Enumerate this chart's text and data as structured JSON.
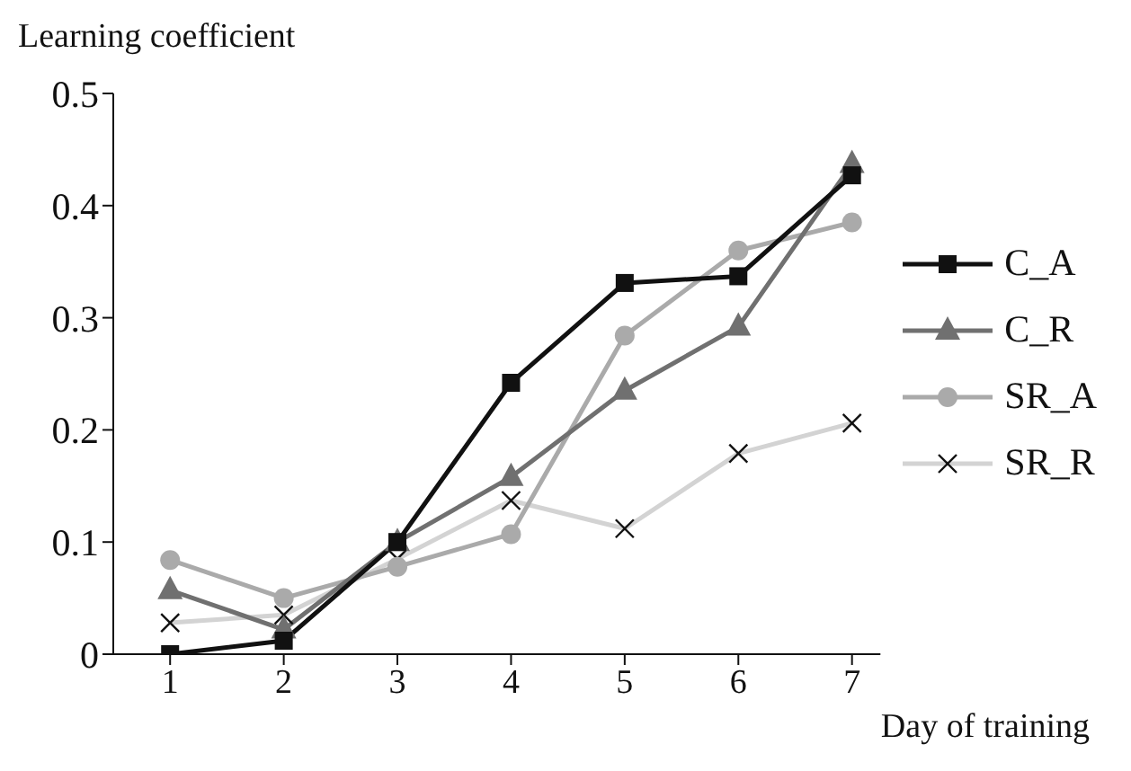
{
  "chart_data": {
    "type": "line",
    "ylabel": "Learning coefficient",
    "xlabel": "Day of training",
    "x": [
      1,
      2,
      3,
      4,
      5,
      6,
      7
    ],
    "xlim": [
      0.5,
      7.25
    ],
    "xticks": [
      1,
      2,
      3,
      4,
      5,
      6,
      7
    ],
    "ylim": [
      0,
      0.5
    ],
    "yticks": [
      0,
      0.1,
      0.2,
      0.3,
      0.4,
      0.5
    ],
    "grid": false,
    "legend": "right",
    "line_style": "solid",
    "series": [
      {
        "name": "C_A",
        "color": "#111111",
        "marker": "square",
        "values": [
          0,
          0.012,
          0.1,
          0.242,
          0.331,
          0.337,
          0.427
        ]
      },
      {
        "name": "C_R",
        "color": "#707070",
        "marker": "triangle",
        "values": [
          0.057,
          0.022,
          0.1,
          0.158,
          0.235,
          0.292,
          0.437
        ]
      },
      {
        "name": "SR_A",
        "color": "#aaaaaa",
        "marker": "circle",
        "values": [
          0.084,
          0.05,
          0.078,
          0.107,
          0.284,
          0.36,
          0.385
        ]
      },
      {
        "name": "SR_R",
        "color": "#d3d3d3",
        "marker": "cross",
        "values": [
          0.028,
          0.035,
          0.085,
          0.137,
          0.112,
          0.179,
          0.206
        ]
      }
    ]
  }
}
